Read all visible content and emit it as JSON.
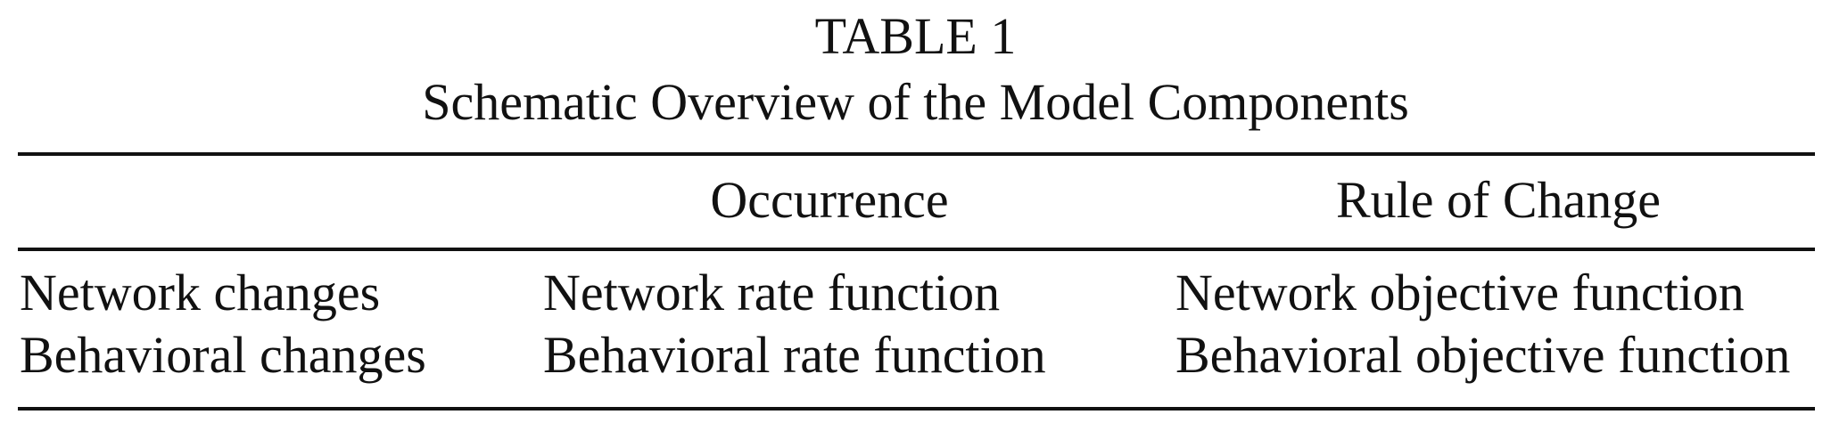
{
  "table": {
    "label": "TABLE 1",
    "title": "Schematic Overview of the Model Components",
    "headers": [
      "",
      "Occurrence",
      "Rule of Change"
    ],
    "rows": [
      [
        "Network changes",
        "Network rate function",
        "Network objective function"
      ],
      [
        "Behavioral changes",
        "Behavioral rate function",
        "Behavioral objective function"
      ]
    ]
  }
}
